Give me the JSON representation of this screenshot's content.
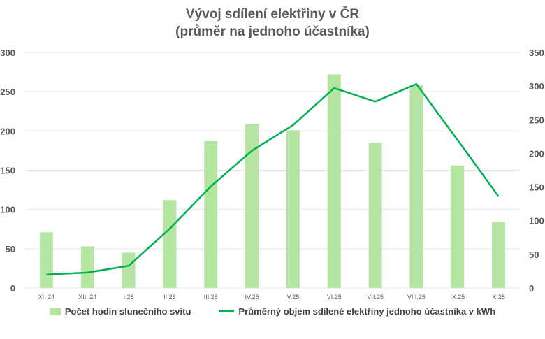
{
  "chart_data": {
    "type": "bar+line",
    "title": [
      "Vývoj sdílení elektřiny v ČR",
      "(průměr na jednoho účastníka)"
    ],
    "categories": [
      "XI. 24",
      "XII. 24",
      "I.25",
      "II.25",
      "III.25",
      "IV.25",
      "V.25",
      "VI.25",
      "VII.25",
      "VIII.25",
      "IX.25",
      "X.25"
    ],
    "series": [
      {
        "name": "Počet hodin slunečního svitu",
        "type": "bar",
        "axis": "left",
        "color": "#b5e5a2",
        "values": [
          71,
          53,
          45,
          112,
          187,
          209,
          201,
          272,
          185,
          258,
          156,
          84
        ]
      },
      {
        "name": "Průměrný objem sdílené elektřiny jednoho účastníka v kWh",
        "type": "line",
        "axis": "right",
        "color": "#00b050",
        "values": [
          20,
          23,
          33,
          88,
          151,
          204,
          242,
          297,
          277,
          303,
          220,
          136
        ]
      }
    ],
    "left_axis": {
      "ylim": [
        0,
        300
      ],
      "ticks": [
        "0",
        "50",
        "100",
        "150",
        "200",
        "250",
        "300"
      ]
    },
    "right_axis": {
      "ylim": [
        0,
        350
      ],
      "ticks": [
        "0",
        "50",
        "100",
        "150",
        "200",
        "250",
        "300",
        "350"
      ]
    },
    "grid": true,
    "legend": "bottom"
  }
}
